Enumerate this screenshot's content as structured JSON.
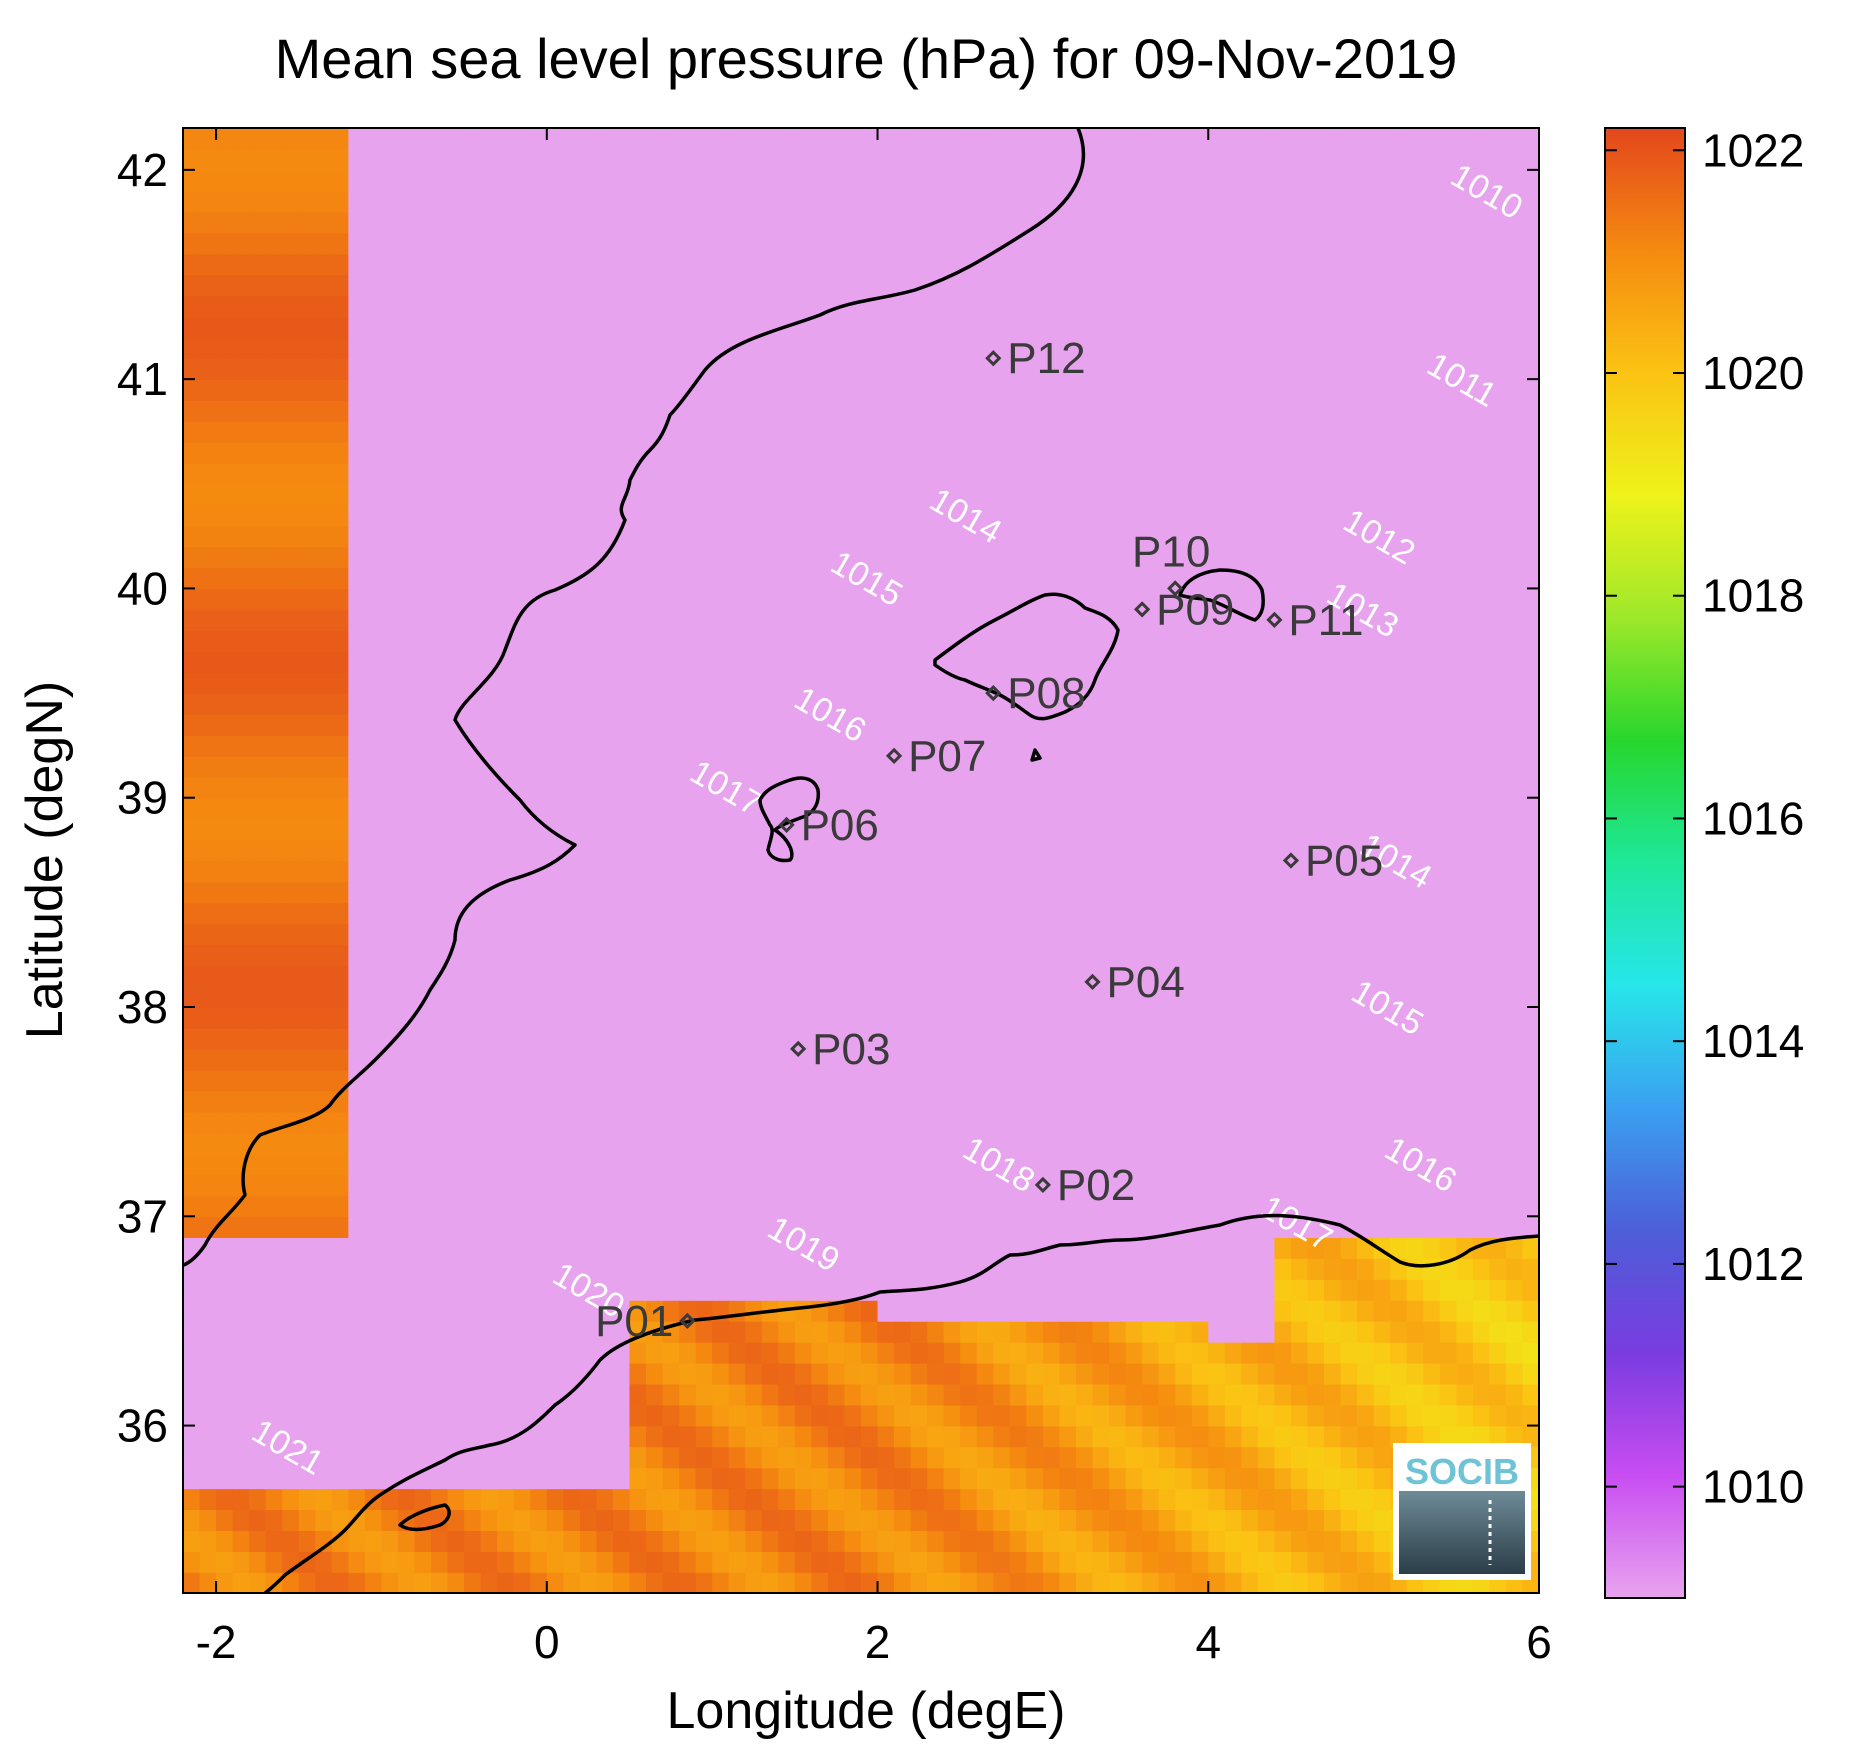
{
  "title": "Mean sea level pressure (hPa) for 09-Nov-2019",
  "xlabel": "Longitude (degE)",
  "ylabel": "Latitude (degN)",
  "logo_text": "SOCIB",
  "chart_data": {
    "type": "heatmap",
    "variable": "Mean sea level pressure",
    "units": "hPa",
    "date": "09-Nov-2019",
    "xlim": [
      -2.2,
      6
    ],
    "ylim": [
      35.2,
      42.2
    ],
    "x_ticks": [
      "-2",
      "0",
      "2",
      "4",
      "6"
    ],
    "y_ticks": [
      "36",
      "37",
      "38",
      "39",
      "40",
      "41",
      "42"
    ],
    "colorbar": {
      "range": [
        1009,
        1022.2
      ],
      "ticks": [
        "1010",
        "1012",
        "1014",
        "1016",
        "1018",
        "1020",
        "1022"
      ],
      "colormap": [
        "#e8a3ee",
        "#c84df2",
        "#7a3ce0",
        "#4d5ed8",
        "#3aa0f0",
        "#27e6ea",
        "#1ee89a",
        "#27d62c",
        "#9ee82a",
        "#eef21a",
        "#fbc313",
        "#f58a10",
        "#e3471c"
      ]
    },
    "contour_levels": [
      {
        "value": 1010,
        "label": "1010"
      },
      {
        "value": 1011,
        "label": "1011"
      },
      {
        "value": 1012,
        "label": "1012"
      },
      {
        "value": 1013,
        "label": "1013"
      },
      {
        "value": 1014,
        "label": "1014"
      },
      {
        "value": 1015,
        "label": "1015"
      },
      {
        "value": 1016,
        "label": "1016"
      },
      {
        "value": 1017,
        "label": "1017"
      },
      {
        "value": 1018,
        "label": "1018"
      },
      {
        "value": 1019,
        "label": "1019"
      },
      {
        "value": 1020,
        "label": "1020"
      },
      {
        "value": 1021,
        "label": "1021"
      }
    ],
    "contour_labels": [
      {
        "text": "1010",
        "lon": 5.65,
        "lat": 41.85
      },
      {
        "text": "1011",
        "lon": 5.5,
        "lat": 40.95
      },
      {
        "text": "1012",
        "lon": 5.0,
        "lat": 40.2
      },
      {
        "text": "1013",
        "lon": 4.9,
        "lat": 39.85
      },
      {
        "text": "1014",
        "lon": 2.5,
        "lat": 40.3
      },
      {
        "text": "1014",
        "lon": 5.1,
        "lat": 38.65
      },
      {
        "text": "1015",
        "lon": 1.9,
        "lat": 40.0
      },
      {
        "text": "1015",
        "lon": 5.05,
        "lat": 37.95
      },
      {
        "text": "1016",
        "lon": 1.68,
        "lat": 39.35
      },
      {
        "text": "1016",
        "lon": 5.25,
        "lat": 37.2
      },
      {
        "text": "1017",
        "lon": 1.05,
        "lat": 39.0
      },
      {
        "text": "1017",
        "lon": 4.5,
        "lat": 36.92
      },
      {
        "text": "1018",
        "lon": 2.7,
        "lat": 37.2
      },
      {
        "text": "1019",
        "lon": 1.52,
        "lat": 36.82
      },
      {
        "text": "1020",
        "lon": 0.22,
        "lat": 36.6
      },
      {
        "text": "1021",
        "lon": -1.6,
        "lat": 35.85
      }
    ],
    "points": [
      {
        "label": "P01",
        "lon": 0.85,
        "lat": 36.5
      },
      {
        "label": "P02",
        "lon": 3.0,
        "lat": 37.15
      },
      {
        "label": "P03",
        "lon": 1.52,
        "lat": 37.8
      },
      {
        "label": "P04",
        "lon": 3.3,
        "lat": 38.12
      },
      {
        "label": "P05",
        "lon": 4.5,
        "lat": 38.7
      },
      {
        "label": "P06",
        "lon": 1.45,
        "lat": 38.87
      },
      {
        "label": "P07",
        "lon": 2.1,
        "lat": 39.2
      },
      {
        "label": "P08",
        "lon": 2.7,
        "lat": 39.5
      },
      {
        "label": "P09",
        "lon": 3.6,
        "lat": 39.9
      },
      {
        "label": "P10",
        "lon": 3.8,
        "lat": 40.0
      },
      {
        "label": "P11",
        "lon": 4.4,
        "lat": 39.85
      },
      {
        "label": "P12",
        "lon": 2.7,
        "lat": 41.1
      }
    ]
  }
}
